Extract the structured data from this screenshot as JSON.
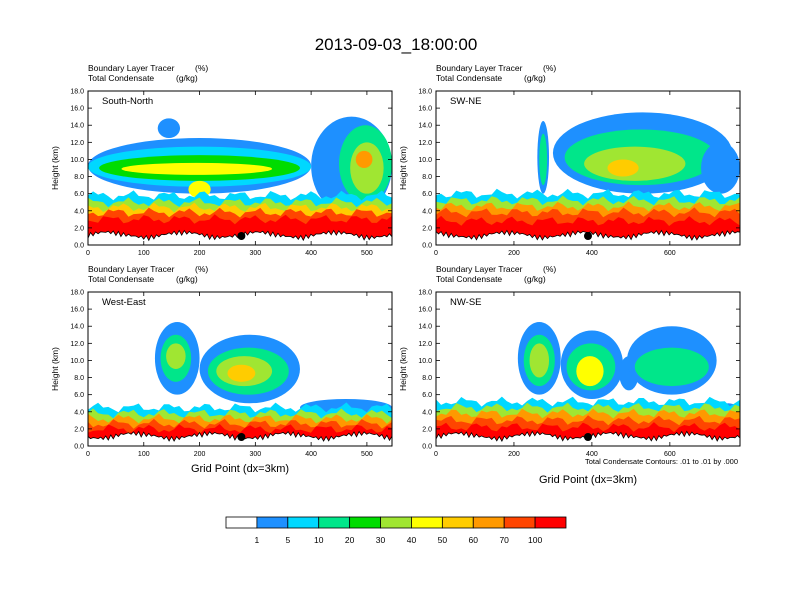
{
  "figure": {
    "title": "2013-09-03_18:00:00",
    "field_label": "Boundary Layer Tracer",
    "field_units": "(%)",
    "overlay_label": "Total Condensate",
    "overlay_units": "(g/kg)",
    "ylabel": "Height (km)",
    "xlabel": "Grid Point (dx=3km)",
    "contour_note": "Total Condensate Contours: .01 to .01 by .000"
  },
  "colorbar": {
    "levels": [
      "1",
      "5",
      "10",
      "20",
      "30",
      "40",
      "50",
      "60",
      "70",
      "100"
    ],
    "colors": [
      "#ffffff",
      "#1e90ff",
      "#00d8ff",
      "#00e68a",
      "#00dc00",
      "#a0e632",
      "#ffff00",
      "#ffcc00",
      "#ff9900",
      "#ff4500",
      "#ff0000"
    ]
  },
  "chart_data": [
    {
      "type": "heatmap",
      "panel": "South-North",
      "x_ticks": [
        "0",
        "100",
        "200",
        "300",
        "400",
        "500"
      ],
      "y_ticks": [
        "0.0",
        "2.0",
        "4.0",
        "6.0",
        "8.0",
        "10.0",
        "12.0",
        "14.0",
        "16.0",
        "18.0"
      ],
      "xlim": [
        0,
        545
      ],
      "ylim": [
        0,
        18
      ],
      "marker_x": 275,
      "blobs": [
        {
          "level": 1,
          "x": [
            0,
            400
          ],
          "y": [
            6.0,
            12.5
          ]
        },
        {
          "level": 2,
          "x": [
            0,
            400
          ],
          "y": [
            6.8,
            11.5
          ]
        },
        {
          "level": 4,
          "x": [
            20,
            380
          ],
          "y": [
            7.5,
            10.5
          ]
        },
        {
          "level": 6,
          "x": [
            60,
            330
          ],
          "y": [
            8.2,
            9.6
          ]
        },
        {
          "level": 1,
          "x": [
            125,
            165
          ],
          "y": [
            12.5,
            14.8
          ]
        },
        {
          "level": 1,
          "x": [
            400,
            545
          ],
          "y": [
            3.5,
            15.0
          ]
        },
        {
          "level": 3,
          "x": [
            450,
            545
          ],
          "y": [
            5.0,
            14.0
          ]
        },
        {
          "level": 5,
          "x": [
            470,
            530
          ],
          "y": [
            6.0,
            12.0
          ]
        },
        {
          "level": 8,
          "x": [
            480,
            510
          ],
          "y": [
            9.0,
            11.0
          ]
        },
        {
          "level": 6,
          "x": [
            180,
            220
          ],
          "y": [
            5.5,
            7.5
          ]
        }
      ],
      "bands": [
        {
          "level": 2,
          "top": 5.8
        },
        {
          "level": 5,
          "top": 5.0
        },
        {
          "level": 7,
          "top": 4.4
        },
        {
          "level": 9,
          "top": 3.8
        },
        {
          "level": 10,
          "top": 3.0
        }
      ]
    },
    {
      "type": "heatmap",
      "panel": "SW-NE",
      "x_ticks": [
        "0",
        "200",
        "400",
        "600"
      ],
      "y_ticks": [
        "0.0",
        "2.0",
        "4.0",
        "6.0",
        "8.0",
        "10.0",
        "12.0",
        "14.0",
        "16.0",
        "18.0"
      ],
      "xlim": [
        0,
        780
      ],
      "ylim": [
        0,
        18
      ],
      "marker_x": 390,
      "blobs": [
        {
          "level": 1,
          "x": [
            260,
            290
          ],
          "y": [
            6.0,
            14.5
          ]
        },
        {
          "level": 3,
          "x": [
            265,
            285
          ],
          "y": [
            7.0,
            13.0
          ]
        },
        {
          "level": 1,
          "x": [
            300,
            760
          ],
          "y": [
            6.0,
            15.5
          ]
        },
        {
          "level": 3,
          "x": [
            330,
            720
          ],
          "y": [
            7.0,
            13.5
          ]
        },
        {
          "level": 5,
          "x": [
            380,
            640
          ],
          "y": [
            7.5,
            11.5
          ]
        },
        {
          "level": 7,
          "x": [
            440,
            520
          ],
          "y": [
            8.0,
            10.0
          ]
        },
        {
          "level": 1,
          "x": [
            680,
            780
          ],
          "y": [
            6.0,
            12.0
          ]
        }
      ],
      "bands": [
        {
          "level": 2,
          "top": 6.0
        },
        {
          "level": 5,
          "top": 5.2
        },
        {
          "level": 8,
          "top": 4.5
        },
        {
          "level": 9,
          "top": 3.8
        },
        {
          "level": 10,
          "top": 2.8
        }
      ]
    },
    {
      "type": "heatmap",
      "panel": "West-East",
      "x_ticks": [
        "0",
        "100",
        "200",
        "300",
        "400",
        "500"
      ],
      "y_ticks": [
        "0.0",
        "2.0",
        "4.0",
        "6.0",
        "8.0",
        "10.0",
        "12.0",
        "14.0",
        "16.0",
        "18.0"
      ],
      "xlim": [
        0,
        545
      ],
      "ylim": [
        0,
        18
      ],
      "marker_x": 275,
      "blobs": [
        {
          "level": 1,
          "x": [
            120,
            200
          ],
          "y": [
            6.0,
            14.5
          ]
        },
        {
          "level": 3,
          "x": [
            130,
            185
          ],
          "y": [
            7.5,
            13.0
          ]
        },
        {
          "level": 5,
          "x": [
            140,
            175
          ],
          "y": [
            9.0,
            12.0
          ]
        },
        {
          "level": 1,
          "x": [
            200,
            380
          ],
          "y": [
            5.0,
            13.0
          ]
        },
        {
          "level": 3,
          "x": [
            215,
            360
          ],
          "y": [
            6.0,
            11.5
          ]
        },
        {
          "level": 5,
          "x": [
            230,
            330
          ],
          "y": [
            7.0,
            10.5
          ]
        },
        {
          "level": 7,
          "x": [
            250,
            300
          ],
          "y": [
            7.5,
            9.5
          ]
        },
        {
          "level": 1,
          "x": [
            380,
            545
          ],
          "y": [
            3.5,
            5.5
          ]
        }
      ],
      "bands": [
        {
          "level": 2,
          "top": 4.5
        },
        {
          "level": 5,
          "top": 3.8
        },
        {
          "level": 8,
          "top": 3.2
        },
        {
          "level": 9,
          "top": 2.6
        },
        {
          "level": 10,
          "top": 2.0
        }
      ]
    },
    {
      "type": "heatmap",
      "panel": "NW-SE",
      "x_ticks": [
        "0",
        "200",
        "400",
        "600"
      ],
      "y_ticks": [
        "0.0",
        "2.0",
        "4.0",
        "6.0",
        "8.0",
        "10.0",
        "12.0",
        "14.0",
        "16.0",
        "18.0"
      ],
      "xlim": [
        0,
        780
      ],
      "ylim": [
        0,
        18
      ],
      "marker_x": 390,
      "blobs": [
        {
          "level": 1,
          "x": [
            210,
            320
          ],
          "y": [
            6.0,
            14.5
          ]
        },
        {
          "level": 3,
          "x": [
            225,
            305
          ],
          "y": [
            7.0,
            13.0
          ]
        },
        {
          "level": 5,
          "x": [
            240,
            290
          ],
          "y": [
            8.0,
            12.0
          ]
        },
        {
          "level": 1,
          "x": [
            320,
            480
          ],
          "y": [
            5.5,
            13.5
          ]
        },
        {
          "level": 3,
          "x": [
            335,
            460
          ],
          "y": [
            6.5,
            12.0
          ]
        },
        {
          "level": 6,
          "x": [
            360,
            430
          ],
          "y": [
            7.0,
            10.5
          ]
        },
        {
          "level": 1,
          "x": [
            470,
            520
          ],
          "y": [
            6.5,
            10.5
          ]
        },
        {
          "level": 1,
          "x": [
            490,
            720
          ],
          "y": [
            6.0,
            14.0
          ]
        },
        {
          "level": 3,
          "x": [
            510,
            700
          ],
          "y": [
            7.0,
            11.5
          ]
        },
        {
          "level": 1,
          "x": [
            720,
            780
          ],
          "y": [
            2.5,
            5.0
          ]
        }
      ],
      "bands": [
        {
          "level": 2,
          "top": 5.2
        },
        {
          "level": 5,
          "top": 4.5
        },
        {
          "level": 8,
          "top": 3.8
        },
        {
          "level": 9,
          "top": 3.0
        },
        {
          "level": 10,
          "top": 2.2
        }
      ]
    }
  ]
}
